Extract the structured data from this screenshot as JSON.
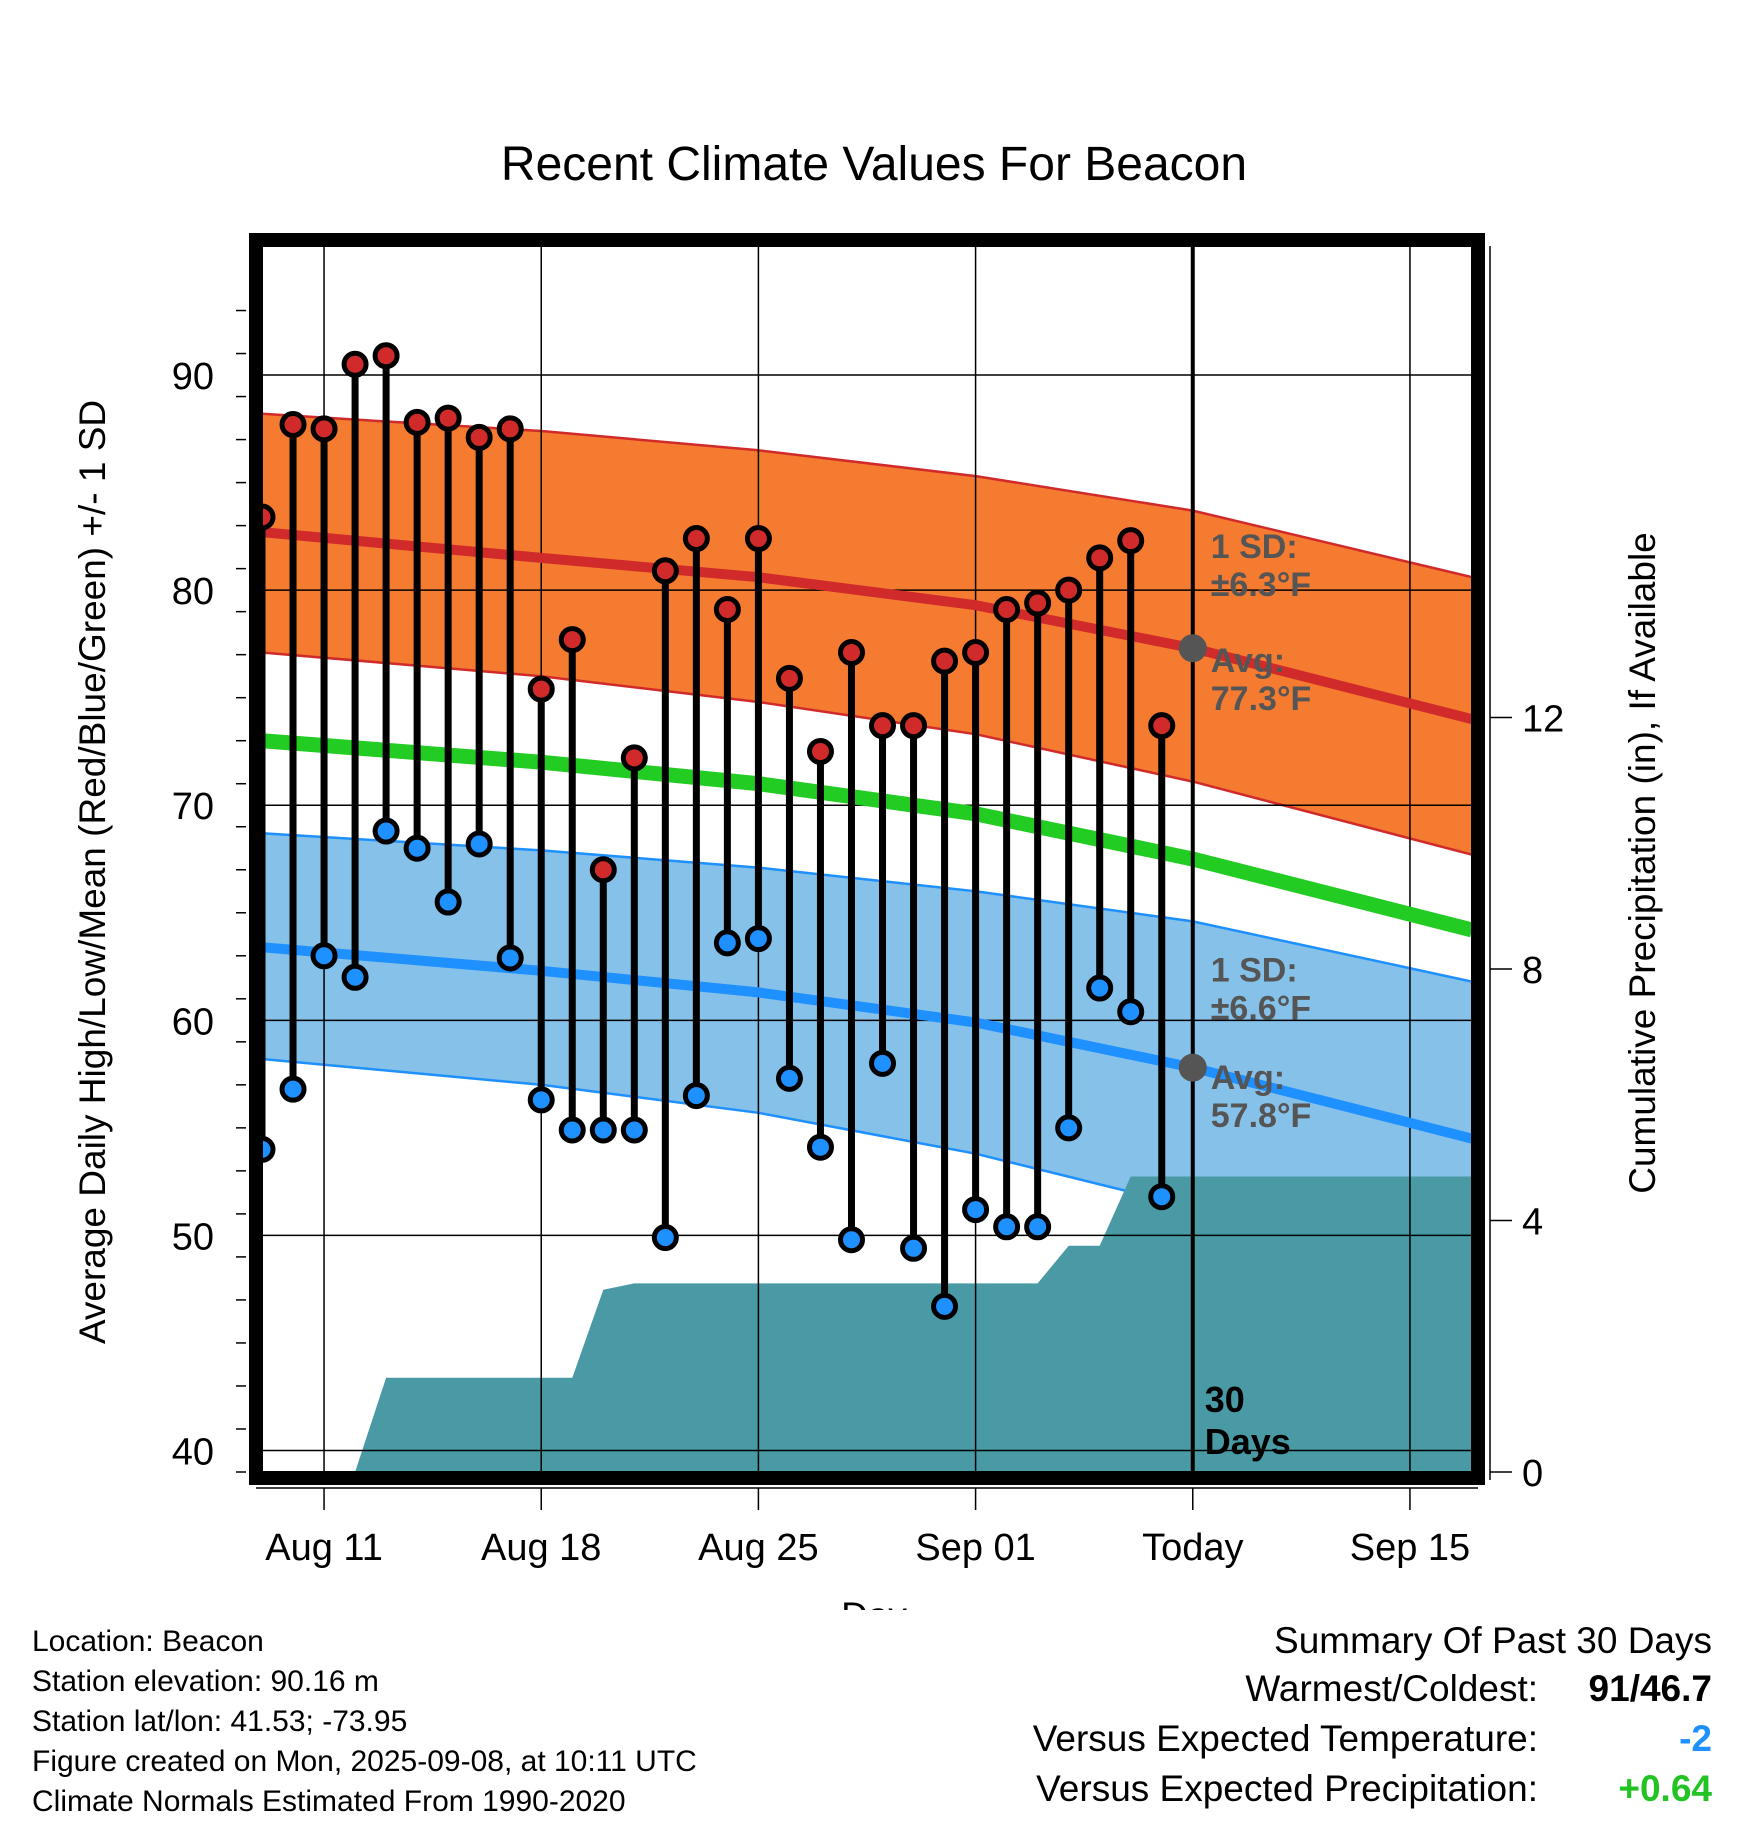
{
  "colors": {
    "high_band": "#f47b30",
    "high_band_edge": "#d02a2a",
    "high_mean": "#d02a2a",
    "low_band": "#85c1e9",
    "low_band_edge": "#1e90ff",
    "low_mean": "#1e90ff",
    "mean_line": "#22cc22",
    "precip_fill": "#4a9aa5",
    "high_point": "#d02a2a",
    "low_point": "#1e90ff",
    "avg_marker": "#555555",
    "annotation_text": "#555555",
    "frame": "#000000",
    "summary_temp": "#1e90ff",
    "summary_precip": "#22c322"
  },
  "chart_data": {
    "type": "line",
    "title": "Recent Climate Values For Beacon",
    "xlabel": "Day",
    "ylabel": "Average Daily High/Low/Mean (Red/Blue/Green) +/- 1 SD",
    "y2label": "Cumulative Precipitation (in), If Available",
    "xlim": [
      "2025-08-09",
      "2025-09-17"
    ],
    "ylim": [
      39,
      96
    ],
    "y2lim": [
      0,
      19.5
    ],
    "grid": true,
    "x_tick_labels": [
      {
        "date": "2025-08-11",
        "label": "Aug 11"
      },
      {
        "date": "2025-08-18",
        "label": "Aug 18"
      },
      {
        "date": "2025-08-25",
        "label": "Aug 25"
      },
      {
        "date": "2025-09-01",
        "label": "Sep 01"
      },
      {
        "date": "2025-09-08",
        "label": "Today"
      },
      {
        "date": "2025-09-15",
        "label": "Sep 15"
      }
    ],
    "y_tick_labels": [
      40,
      50,
      60,
      70,
      80,
      90
    ],
    "y2_tick_labels": [
      0,
      4,
      8,
      12
    ],
    "today": "2025-09-08",
    "today_label": [
      "30",
      "Days"
    ],
    "normals": {
      "x": [
        "2025-08-09",
        "2025-08-18",
        "2025-08-25",
        "2025-09-01",
        "2025-09-08",
        "2025-09-17"
      ],
      "high_mean": [
        82.7,
        81.5,
        80.6,
        79.3,
        77.3,
        74.0
      ],
      "high_upper": [
        88.2,
        87.4,
        86.5,
        85.3,
        83.7,
        80.6
      ],
      "high_lower": [
        77.1,
        76.0,
        74.8,
        73.3,
        71.1,
        67.7
      ],
      "mean": [
        73.0,
        72.0,
        71.0,
        69.6,
        67.5,
        64.2
      ],
      "low_mean": [
        63.4,
        62.3,
        61.3,
        59.9,
        57.8,
        54.5
      ],
      "low_upper": [
        68.7,
        67.9,
        67.1,
        66.0,
        64.6,
        61.8
      ],
      "low_lower": [
        58.2,
        57.0,
        55.7,
        53.8,
        51.3,
        47.3
      ]
    },
    "annotations": [
      {
        "lines": [
          "1 SD:",
          "±6.3°F"
        ],
        "y": 81.5
      },
      {
        "lines": [
          "Avg:",
          "77.3°F"
        ],
        "y": 76.2
      },
      {
        "lines": [
          "1 SD:",
          "±6.6°F"
        ],
        "y": 61.8
      },
      {
        "lines": [
          "Avg:",
          "57.8°F"
        ],
        "y": 56.8
      }
    ],
    "series": [
      {
        "name": "High",
        "x": [
          "2025-08-09",
          "2025-08-10",
          "2025-08-11",
          "2025-08-12",
          "2025-08-13",
          "2025-08-14",
          "2025-08-15",
          "2025-08-16",
          "2025-08-17",
          "2025-08-18",
          "2025-08-19",
          "2025-08-20",
          "2025-08-21",
          "2025-08-22",
          "2025-08-23",
          "2025-08-24",
          "2025-08-25",
          "2025-08-26",
          "2025-08-27",
          "2025-08-28",
          "2025-08-29",
          "2025-08-30",
          "2025-08-31",
          "2025-09-01",
          "2025-09-02",
          "2025-09-03",
          "2025-09-04",
          "2025-09-05",
          "2025-09-06",
          "2025-09-07"
        ],
        "values": [
          83.4,
          87.7,
          87.5,
          90.5,
          90.9,
          87.8,
          88.0,
          87.1,
          87.5,
          75.4,
          77.7,
          67.0,
          72.2,
          80.9,
          82.4,
          79.1,
          82.4,
          75.9,
          72.5,
          77.1,
          73.7,
          73.7,
          76.7,
          77.1,
          79.1,
          79.4,
          80.0,
          81.5,
          82.3,
          73.7
        ]
      },
      {
        "name": "Low",
        "x": [
          "2025-08-09",
          "2025-08-10",
          "2025-08-11",
          "2025-08-12",
          "2025-08-13",
          "2025-08-14",
          "2025-08-15",
          "2025-08-16",
          "2025-08-17",
          "2025-08-18",
          "2025-08-19",
          "2025-08-20",
          "2025-08-21",
          "2025-08-22",
          "2025-08-23",
          "2025-08-24",
          "2025-08-25",
          "2025-08-26",
          "2025-08-27",
          "2025-08-28",
          "2025-08-29",
          "2025-08-30",
          "2025-08-31",
          "2025-09-01",
          "2025-09-02",
          "2025-09-03",
          "2025-09-04",
          "2025-09-05",
          "2025-09-06",
          "2025-09-07"
        ],
        "values": [
          54.0,
          56.8,
          63.0,
          62.0,
          68.8,
          68.0,
          65.5,
          68.2,
          62.9,
          56.3,
          54.9,
          54.9,
          54.9,
          49.9,
          56.5,
          63.6,
          63.8,
          57.3,
          54.1,
          49.8,
          58.0,
          49.4,
          46.7,
          51.2,
          50.4,
          50.4,
          55.0,
          61.5,
          60.4,
          51.8
        ]
      },
      {
        "name": "Cumulative Precipitation",
        "x": [
          "2025-08-09",
          "2025-08-10",
          "2025-08-11",
          "2025-08-12",
          "2025-08-13",
          "2025-08-14",
          "2025-08-15",
          "2025-08-16",
          "2025-08-17",
          "2025-08-18",
          "2025-08-19",
          "2025-08-20",
          "2025-08-21",
          "2025-08-22",
          "2025-08-23",
          "2025-08-24",
          "2025-08-25",
          "2025-08-26",
          "2025-08-27",
          "2025-08-28",
          "2025-08-29",
          "2025-08-30",
          "2025-08-31",
          "2025-09-01",
          "2025-09-02",
          "2025-09-03",
          "2025-09-04",
          "2025-09-05",
          "2025-09-06",
          "2025-09-07",
          "2025-09-08",
          "2025-09-17"
        ],
        "values": [
          0,
          0,
          0,
          0,
          1.5,
          1.5,
          1.5,
          1.5,
          1.5,
          1.5,
          1.5,
          2.9,
          3.0,
          3.0,
          3.0,
          3.0,
          3.0,
          3.0,
          3.0,
          3.0,
          3.0,
          3.0,
          3.0,
          3.0,
          3.0,
          3.0,
          3.6,
          3.6,
          4.7,
          4.7,
          4.7,
          4.7
        ]
      }
    ]
  },
  "footer": {
    "location": "Location: Beacon",
    "elevation": "Station elevation: 90.16 m",
    "latlon": "Station lat/lon: 41.53; -73.95",
    "created": "Figure created on Mon, 2025-09-08, at 10:11 UTC",
    "normals": "Climate Normals Estimated From 1990-2020"
  },
  "summary": {
    "title": "Summary Of Past 30 Days",
    "warmest_label": "Warmest/Coldest:",
    "warmest_value": "91/46.7",
    "temp_label": "Versus Expected Temperature:",
    "temp_value": "-2",
    "precip_label": "Versus Expected Precipitation:",
    "precip_value": "+0.64"
  }
}
